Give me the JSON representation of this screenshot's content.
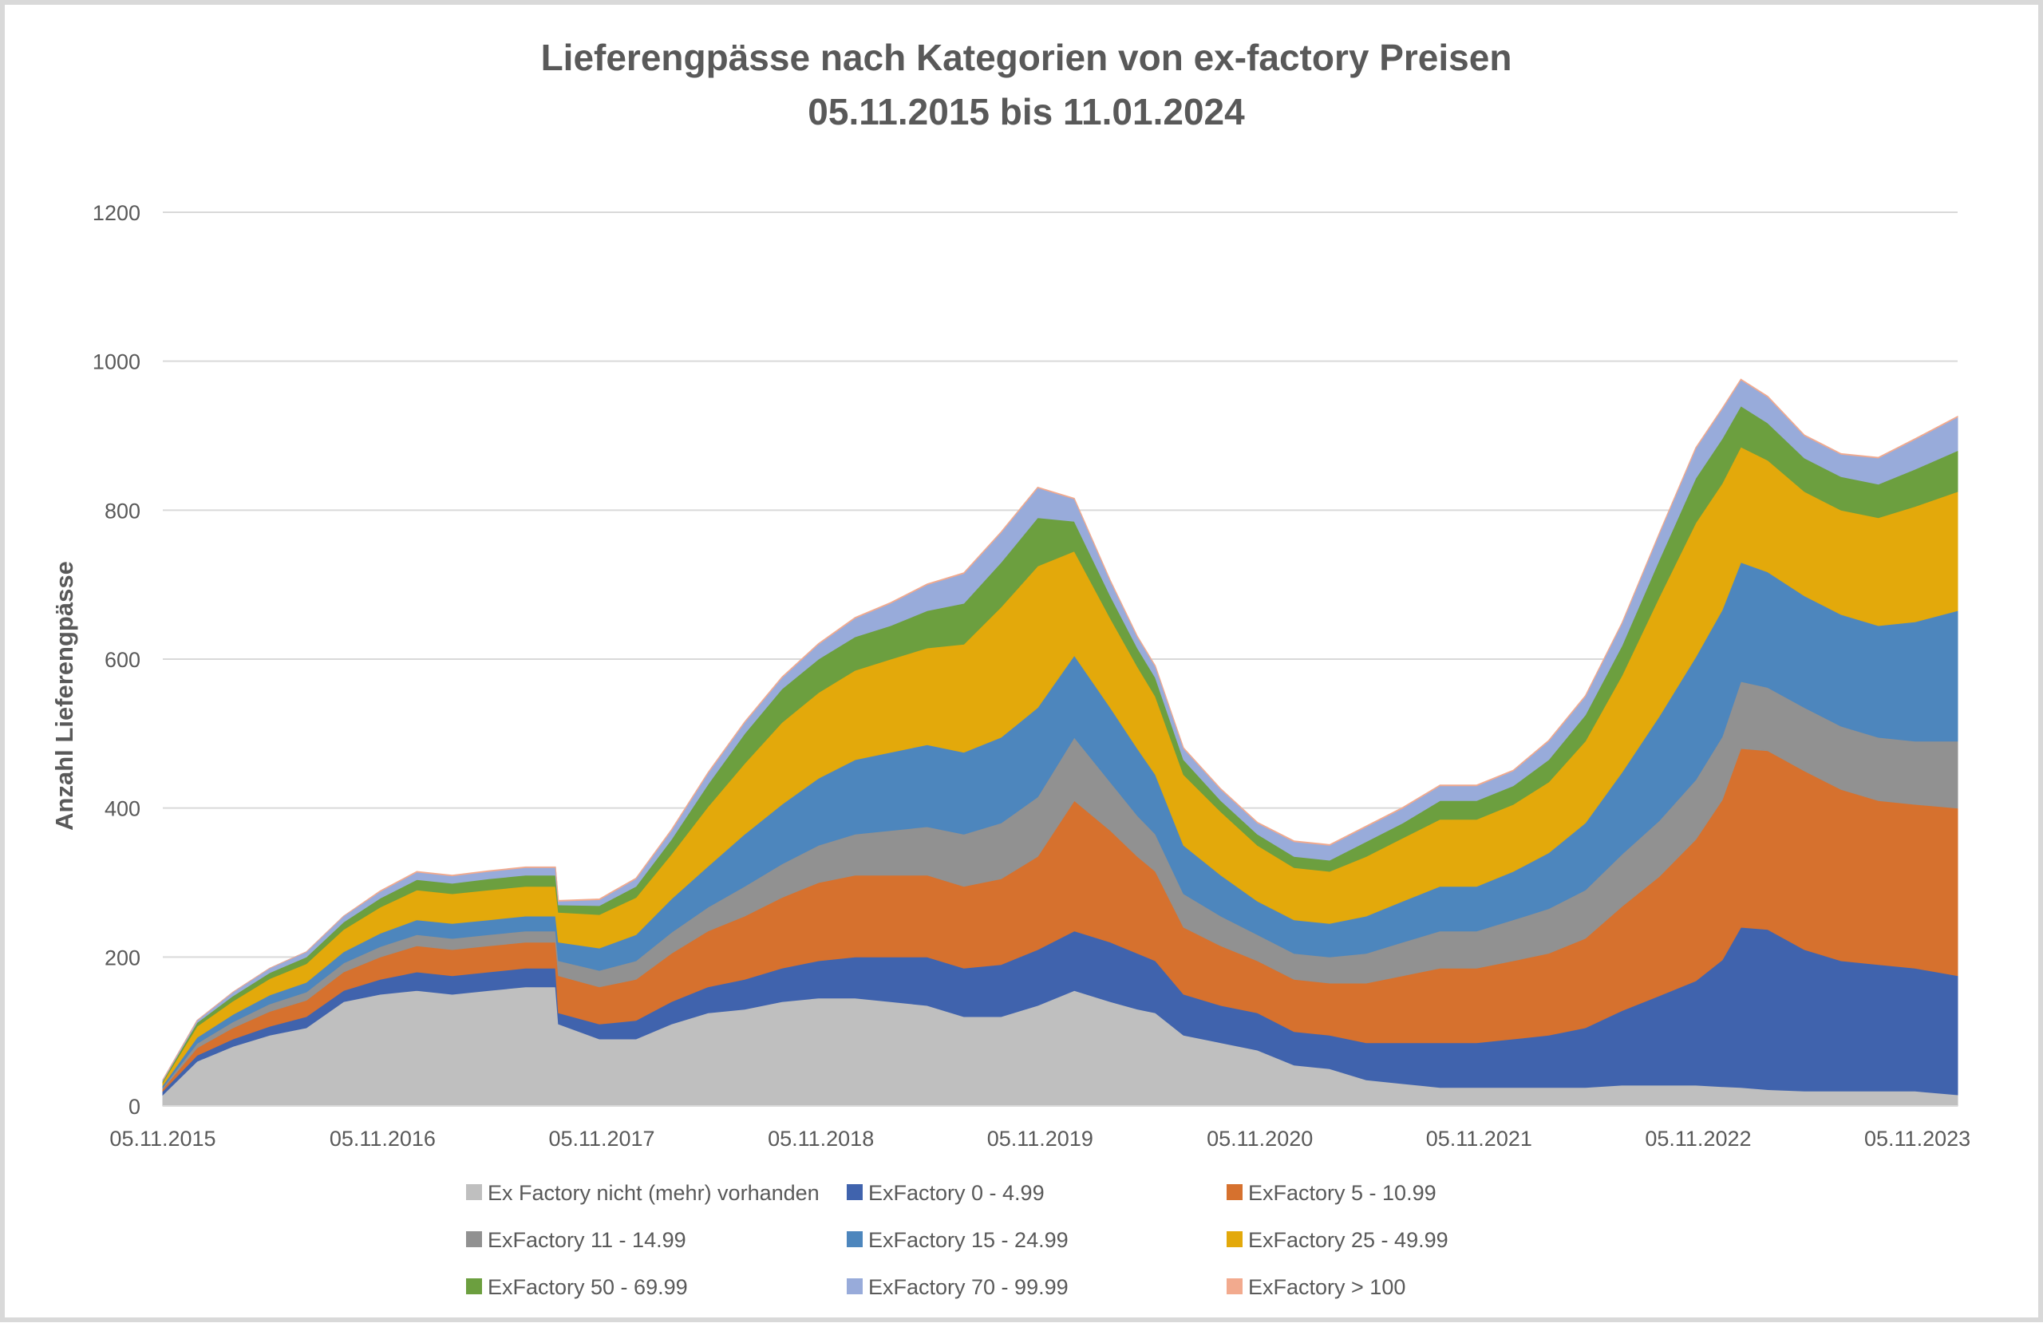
{
  "chart_data": {
    "type": "area",
    "stacked": true,
    "title": "Lieferengpässe nach Kategorien von ex-factory Preisen",
    "subtitle": "05.11.2015 bis 11.01.2024",
    "xlabel": "",
    "ylabel": "Anzahl Lieferengpässe",
    "ylim": [
      0,
      1200
    ],
    "yticks": [
      "0",
      "200",
      "400",
      "600",
      "800",
      "1000",
      "1200"
    ],
    "xlim": [
      "2015-11-05",
      "2024-01-11"
    ],
    "xticks": [
      "05.11.2015",
      "05.11.2016",
      "05.11.2017",
      "05.11.2018",
      "05.11.2019",
      "05.11.2020",
      "05.11.2021",
      "05.11.2022",
      "05.11.2023"
    ],
    "grid": true,
    "legend_position": "bottom",
    "x": [
      "2015-11-05",
      "2016-01-01",
      "2016-03-01",
      "2016-05-01",
      "2016-07-01",
      "2016-09-01",
      "2016-11-01",
      "2017-01-01",
      "2017-03-01",
      "2017-05-01",
      "2017-07-01",
      "2017-08-20",
      "2017-08-25",
      "2017-11-01",
      "2018-01-01",
      "2018-03-01",
      "2018-05-01",
      "2018-07-01",
      "2018-09-01",
      "2018-11-01",
      "2019-01-01",
      "2019-03-01",
      "2019-05-01",
      "2019-07-01",
      "2019-09-01",
      "2019-11-01",
      "2020-01-01",
      "2020-03-01",
      "2020-04-15",
      "2020-05-15",
      "2020-07-01",
      "2020-09-01",
      "2020-11-01",
      "2021-01-01",
      "2021-03-01",
      "2021-05-01",
      "2021-07-01",
      "2021-09-01",
      "2021-11-01",
      "2022-01-01",
      "2022-03-01",
      "2022-05-01",
      "2022-07-01",
      "2022-09-01",
      "2022-11-01",
      "2022-12-15",
      "2023-01-15",
      "2023-03-01",
      "2023-05-01",
      "2023-07-01",
      "2023-09-01",
      "2023-11-01",
      "2024-01-11"
    ],
    "series": [
      {
        "name": "Ex Factory nicht (mehr) vorhanden",
        "color": "#bfbfbf",
        "values": [
          15,
          60,
          80,
          95,
          105,
          140,
          150,
          155,
          150,
          155,
          160,
          160,
          110,
          90,
          90,
          110,
          125,
          130,
          140,
          145,
          145,
          140,
          135,
          120,
          120,
          135,
          155,
          140,
          130,
          125,
          95,
          85,
          75,
          55,
          50,
          35,
          30,
          25,
          25,
          25,
          25,
          25,
          28,
          28,
          28,
          26,
          25,
          22,
          20,
          20,
          20,
          20,
          15
        ]
      },
      {
        "name": "ExFactory 0 - 4.99",
        "color": "#4063ad",
        "values": [
          5,
          8,
          10,
          12,
          15,
          15,
          20,
          25,
          25,
          25,
          25,
          25,
          15,
          20,
          25,
          30,
          35,
          40,
          45,
          50,
          55,
          60,
          65,
          65,
          70,
          75,
          80,
          80,
          75,
          70,
          55,
          50,
          50,
          45,
          45,
          50,
          55,
          60,
          60,
          65,
          70,
          80,
          100,
          120,
          140,
          170,
          215,
          215,
          190,
          175,
          170,
          165,
          160
        ]
      },
      {
        "name": "ExFactory 5 - 10.99",
        "color": "#d6712e",
        "values": [
          3,
          10,
          15,
          20,
          22,
          25,
          30,
          35,
          35,
          35,
          35,
          35,
          50,
          50,
          55,
          65,
          75,
          85,
          95,
          105,
          110,
          110,
          110,
          110,
          115,
          125,
          175,
          150,
          130,
          120,
          90,
          80,
          70,
          70,
          70,
          80,
          90,
          100,
          100,
          105,
          110,
          120,
          140,
          160,
          190,
          215,
          240,
          240,
          240,
          230,
          220,
          220,
          225
        ]
      },
      {
        "name": "ExFactory 11 - 14.99",
        "color": "#919191",
        "values": [
          2,
          6,
          8,
          10,
          11,
          12,
          14,
          15,
          15,
          15,
          15,
          15,
          20,
          22,
          25,
          28,
          32,
          40,
          45,
          50,
          55,
          60,
          65,
          70,
          75,
          80,
          85,
          65,
          55,
          50,
          45,
          40,
          35,
          35,
          35,
          40,
          45,
          50,
          50,
          55,
          60,
          65,
          70,
          75,
          80,
          85,
          90,
          85,
          85,
          85,
          85,
          85,
          90
        ]
      },
      {
        "name": "ExFactory 15 - 24.99",
        "color": "#4d86bd",
        "values": [
          3,
          8,
          10,
          12,
          13,
          15,
          18,
          20,
          20,
          20,
          20,
          20,
          25,
          30,
          35,
          45,
          55,
          70,
          80,
          90,
          100,
          105,
          110,
          110,
          115,
          120,
          110,
          100,
          90,
          80,
          65,
          55,
          45,
          45,
          45,
          50,
          55,
          60,
          60,
          65,
          75,
          90,
          110,
          140,
          165,
          170,
          160,
          155,
          150,
          150,
          150,
          160,
          175
        ]
      },
      {
        "name": "ExFactory 25 - 49.99",
        "color": "#e3a90b",
        "values": [
          4,
          15,
          18,
          22,
          25,
          30,
          35,
          40,
          40,
          40,
          40,
          40,
          40,
          45,
          50,
          60,
          80,
          95,
          110,
          115,
          120,
          125,
          130,
          145,
          175,
          190,
          140,
          120,
          110,
          105,
          95,
          85,
          75,
          70,
          70,
          80,
          85,
          90,
          90,
          90,
          95,
          110,
          130,
          160,
          180,
          170,
          155,
          150,
          140,
          140,
          145,
          155,
          160
        ]
      },
      {
        "name": "ExFactory 50 - 69.99",
        "color": "#6c9f3f",
        "values": [
          2,
          5,
          7,
          8,
          9,
          10,
          12,
          14,
          14,
          15,
          15,
          15,
          10,
          12,
          15,
          20,
          30,
          40,
          45,
          45,
          45,
          45,
          50,
          55,
          60,
          65,
          40,
          30,
          25,
          25,
          20,
          15,
          15,
          15,
          15,
          20,
          20,
          25,
          25,
          25,
          30,
          35,
          40,
          50,
          60,
          60,
          55,
          50,
          45,
          45,
          45,
          50,
          55
        ]
      },
      {
        "name": "ExFactory 70 - 99.99",
        "color": "#98abda",
        "values": [
          1,
          3,
          5,
          6,
          7,
          8,
          9,
          10,
          10,
          10,
          10,
          10,
          5,
          8,
          10,
          12,
          15,
          15,
          15,
          20,
          25,
          30,
          35,
          40,
          40,
          40,
          30,
          20,
          15,
          15,
          15,
          15,
          15,
          20,
          20,
          20,
          20,
          20,
          20,
          20,
          25,
          25,
          30,
          35,
          40,
          40,
          35,
          35,
          30,
          30,
          35,
          40,
          45
        ]
      },
      {
        "name": "ExFactory > 100",
        "color": "#f2aa8e",
        "values": [
          0,
          0,
          0,
          0,
          0,
          0,
          1,
          1,
          1,
          1,
          1,
          1,
          1,
          1,
          1,
          1,
          1,
          1,
          1,
          1,
          1,
          1,
          1,
          1,
          1,
          1,
          1,
          1,
          1,
          1,
          1,
          1,
          1,
          1,
          1,
          1,
          1,
          1,
          1,
          1,
          1,
          1,
          1,
          1,
          1,
          1,
          1,
          1,
          1,
          1,
          1,
          1,
          1
        ]
      }
    ]
  }
}
